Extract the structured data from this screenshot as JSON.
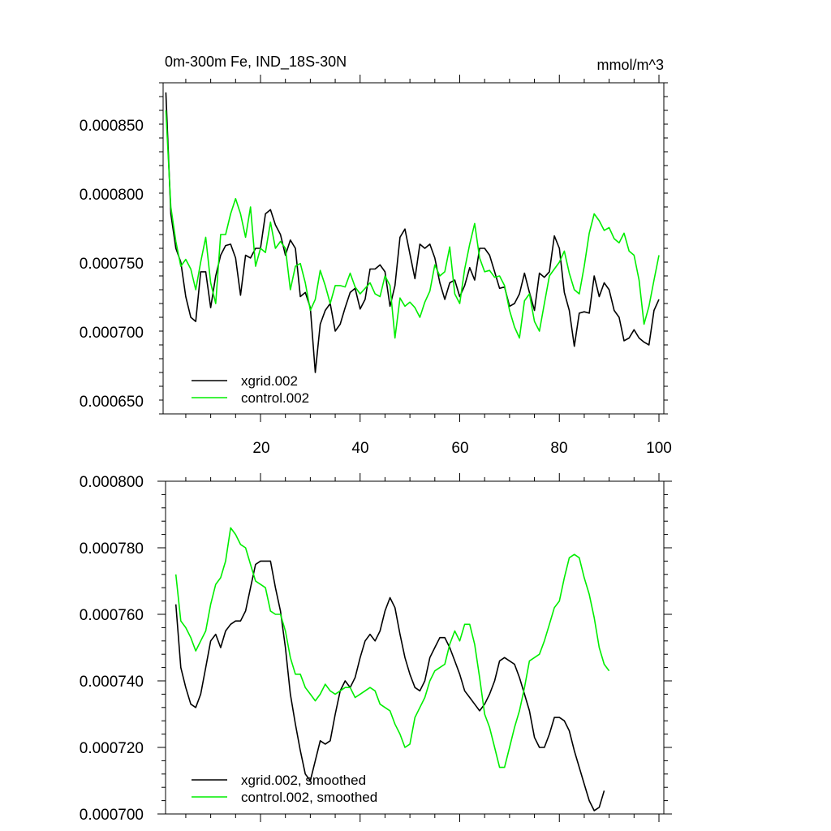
{
  "chart_data": [
    {
      "type": "line",
      "title": "0m-300m Fe, IND_18S-30N",
      "units_label": "mmol/m^3",
      "xlim": [
        0,
        101
      ],
      "ylim": [
        0.000645,
        0.000885
      ],
      "x_tick_values": [
        20,
        40,
        60,
        80,
        100
      ],
      "x_tick_labels": [
        "20",
        "40",
        "60",
        "80",
        "100"
      ],
      "y_tick_values": [
        0.00065,
        0.0007,
        0.00075,
        0.0008,
        0.00085
      ],
      "y_tick_labels": [
        "0.000650",
        "0.000700",
        "0.000750",
        "0.000800",
        "0.000850"
      ],
      "legend_position": "bottom-left",
      "series": [
        {
          "name": "xgrid.002",
          "color": "#000000",
          "x_start": 1,
          "values": [
            0.000878,
            0.00079,
            0.000765,
            0.000755,
            0.00073,
            0.000715,
            0.000712,
            0.000748,
            0.000748,
            0.000722,
            0.000745,
            0.00076,
            0.000767,
            0.000768,
            0.000758,
            0.000731,
            0.00076,
            0.000758,
            0.000765,
            0.000765,
            0.00079,
            0.000793,
            0.000782,
            0.000775,
            0.00076,
            0.000771,
            0.000765,
            0.00073,
            0.000733,
            0.000722,
            0.000675,
            0.00071,
            0.00072,
            0.000725,
            0.000705,
            0.00071,
            0.000722,
            0.000733,
            0.000736,
            0.000721,
            0.000728,
            0.00075,
            0.00075,
            0.000753,
            0.000748,
            0.000723,
            0.000738,
            0.000773,
            0.000779,
            0.000761,
            0.000743,
            0.000768,
            0.000765,
            0.000768,
            0.000758,
            0.00074,
            0.000728,
            0.00074,
            0.000742,
            0.00073,
            0.000738,
            0.000751,
            0.000742,
            0.000765,
            0.000765,
            0.00076,
            0.000748,
            0.000736,
            0.000737,
            0.000723,
            0.000725,
            0.000732,
            0.000747,
            0.000733,
            0.00072,
            0.000747,
            0.000744,
            0.000748,
            0.000774,
            0.000765,
            0.000733,
            0.00072,
            0.000694,
            0.000718,
            0.000719,
            0.000718,
            0.000745,
            0.00073,
            0.00074,
            0.000735,
            0.00072,
            0.000715,
            0.000698,
            0.0007,
            0.000706,
            0.0007,
            0.000697,
            0.000695,
            0.00072,
            0.000728
          ]
        },
        {
          "name": "control.002",
          "color": "#00ee00",
          "x_start": 1,
          "values": [
            0.000865,
            0.000795,
            0.00077,
            0.000752,
            0.000757,
            0.00075,
            0.000735,
            0.000755,
            0.000773,
            0.00074,
            0.000725,
            0.000775,
            0.000775,
            0.00079,
            0.000801,
            0.00079,
            0.000773,
            0.000795,
            0.000752,
            0.000765,
            0.000762,
            0.000784,
            0.000765,
            0.00077,
            0.000765,
            0.000735,
            0.000752,
            0.000754,
            0.00074,
            0.00072,
            0.000728,
            0.000749,
            0.000738,
            0.000725,
            0.000738,
            0.000738,
            0.000737,
            0.000747,
            0.000737,
            0.000732,
            0.000736,
            0.00074,
            0.000732,
            0.00073,
            0.000745,
            0.000738,
            0.0007,
            0.000729,
            0.000723,
            0.000726,
            0.000722,
            0.000715,
            0.000726,
            0.000734,
            0.000753,
            0.000745,
            0.000748,
            0.000766,
            0.000732,
            0.000725,
            0.00075,
            0.000768,
            0.000783,
            0.000758,
            0.000748,
            0.000749,
            0.000744,
            0.000745,
            0.000738,
            0.00072,
            0.000708,
            0.0007,
            0.000727,
            0.000732,
            0.000712,
            0.000705,
            0.000725,
            0.000745,
            0.00075,
            0.000755,
            0.000763,
            0.000747,
            0.000735,
            0.000732,
            0.000752,
            0.000776,
            0.00079,
            0.000785,
            0.000778,
            0.00078,
            0.000772,
            0.000769,
            0.000776,
            0.000763,
            0.00076,
            0.000742,
            0.00071,
            0.000723,
            0.000742,
            0.00076
          ]
        }
      ]
    },
    {
      "type": "line",
      "title": "",
      "xlim": [
        0,
        101
      ],
      "ylim": [
        0.0007,
        0.0008
      ],
      "x_tick_values": [
        20,
        40,
        60,
        80,
        100
      ],
      "y_tick_values": [
        0.0007,
        0.00072,
        0.00074,
        0.00076,
        0.00078,
        0.0008
      ],
      "y_tick_labels": [
        "0.000700",
        "0.000720",
        "0.000740",
        "0.000760",
        "0.000780",
        "0.000800"
      ],
      "legend_position": "bottom-left",
      "series": [
        {
          "name": "xgrid.002, smoothed",
          "color": "#000000",
          "x_start": 3,
          "values": [
            0.000763,
            0.000744,
            0.000738,
            0.000733,
            0.000732,
            0.000736,
            0.000744,
            0.000752,
            0.000754,
            0.00075,
            0.000755,
            0.000757,
            0.000758,
            0.000758,
            0.000761,
            0.000768,
            0.000775,
            0.000776,
            0.000776,
            0.000776,
            0.000768,
            0.000761,
            0.00075,
            0.000736,
            0.000727,
            0.000719,
            0.000712,
            0.00071,
            0.000716,
            0.000722,
            0.000721,
            0.000722,
            0.00073,
            0.000737,
            0.00074,
            0.000738,
            0.000741,
            0.000747,
            0.000752,
            0.000754,
            0.000752,
            0.000755,
            0.000761,
            0.000765,
            0.000762,
            0.000754,
            0.000747,
            0.000742,
            0.000738,
            0.000737,
            0.00074,
            0.000747,
            0.00075,
            0.000753,
            0.000753,
            0.00075,
            0.000746,
            0.000742,
            0.000737,
            0.000735,
            0.000733,
            0.000731,
            0.000733,
            0.000736,
            0.00074,
            0.000746,
            0.000747,
            0.000746,
            0.000745,
            0.000741,
            0.000736,
            0.000731,
            0.000723,
            0.00072,
            0.00072,
            0.000724,
            0.000729,
            0.000729,
            0.000728,
            0.000725,
            0.000719,
            0.000714,
            0.000709,
            0.000704,
            0.000701,
            0.000702,
            0.000707
          ]
        },
        {
          "name": "control.002, smoothed",
          "color": "#00ee00",
          "x_start": 3,
          "values": [
            0.000772,
            0.000758,
            0.000756,
            0.000753,
            0.000749,
            0.000752,
            0.000755,
            0.000763,
            0.000769,
            0.000771,
            0.000776,
            0.000786,
            0.000784,
            0.000781,
            0.00078,
            0.000775,
            0.00077,
            0.000769,
            0.000768,
            0.000761,
            0.00076,
            0.00076,
            0.000755,
            0.000747,
            0.000742,
            0.000742,
            0.000738,
            0.000736,
            0.000734,
            0.000736,
            0.000739,
            0.000737,
            0.000736,
            0.000737,
            0.000738,
            0.000738,
            0.000735,
            0.000736,
            0.000737,
            0.000738,
            0.000737,
            0.000733,
            0.000732,
            0.000731,
            0.000727,
            0.000724,
            0.00072,
            0.000721,
            0.000729,
            0.000732,
            0.000735,
            0.00074,
            0.000743,
            0.000744,
            0.000745,
            0.000751,
            0.000755,
            0.000752,
            0.000757,
            0.000757,
            0.000751,
            0.000741,
            0.00073,
            0.000726,
            0.00072,
            0.000714,
            0.000714,
            0.00072,
            0.000726,
            0.000731,
            0.000738,
            0.000746,
            0.000747,
            0.000748,
            0.000752,
            0.000757,
            0.000762,
            0.000764,
            0.000771,
            0.000777,
            0.000778,
            0.000777,
            0.000771,
            0.000766,
            0.000759,
            0.00075,
            0.000745,
            0.000743
          ]
        }
      ]
    }
  ]
}
